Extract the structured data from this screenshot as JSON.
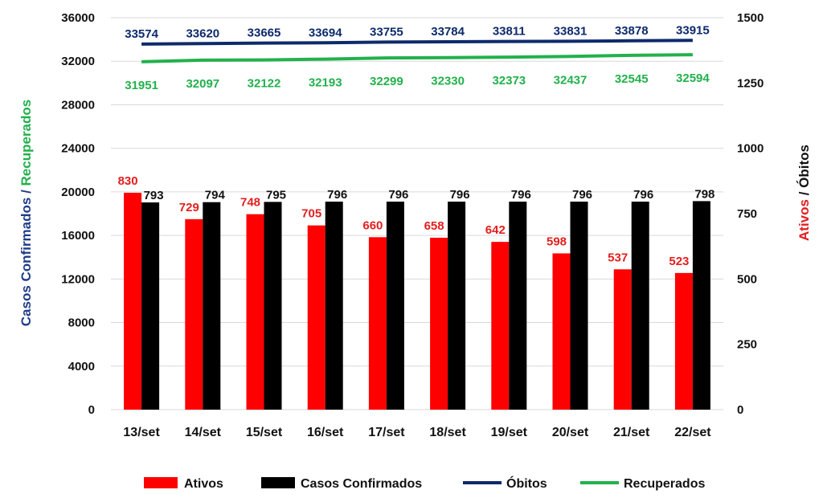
{
  "chart_data": {
    "type": "bar",
    "categories": [
      "13/set",
      "14/set",
      "15/set",
      "16/set",
      "17/set",
      "18/set",
      "19/set",
      "20/set",
      "21/set",
      "22/set"
    ],
    "series": [
      {
        "name": "Ativos",
        "type": "bar",
        "axis": "right",
        "color": "#ff0000",
        "values": [
          830,
          729,
          748,
          705,
          660,
          658,
          642,
          598,
          537,
          523
        ]
      },
      {
        "name": "Casos Confirmados",
        "type": "bar",
        "axis": "right",
        "color": "#000000",
        "values": [
          793,
          794,
          795,
          796,
          796,
          796,
          796,
          796,
          796,
          798
        ]
      },
      {
        "name": "Óbitos",
        "type": "line",
        "axis": "left",
        "color": "#0d2a6b",
        "values": [
          33574,
          33620,
          33665,
          33694,
          33755,
          33784,
          33811,
          33831,
          33878,
          33915
        ]
      },
      {
        "name": "Recuperados",
        "type": "line",
        "axis": "left",
        "color": "#22b14c",
        "values": [
          31951,
          32097,
          32122,
          32193,
          32299,
          32330,
          32373,
          32437,
          32545,
          32594
        ]
      }
    ],
    "ylabel_left": {
      "part1": "Casos Confirmados",
      "sep": " / ",
      "part2": "Recuperados"
    },
    "ylabel_right": {
      "part1": "Ativos",
      "sep": " / ",
      "part2": "Óbitos"
    },
    "y_left": {
      "min": 0,
      "max": 36000,
      "ticks": [
        0,
        4000,
        8000,
        12000,
        16000,
        20000,
        24000,
        28000,
        32000,
        36000
      ]
    },
    "y_right": {
      "min": 0,
      "max": 1500,
      "ticks": [
        0,
        250,
        500,
        750,
        1000,
        1250,
        1500
      ]
    },
    "grid": true,
    "legend_position": "bottom",
    "colors": {
      "left_label_part1": "#1f3c88",
      "left_label_part2": "#22b14c",
      "right_label_part1": "#e31e1e",
      "right_label_part2": "#111111",
      "ativos_label": "#e31e1e",
      "confirmados_label": "#111111",
      "obitos_label": "#0d2a6b",
      "recuperados_label": "#22b14c"
    }
  }
}
